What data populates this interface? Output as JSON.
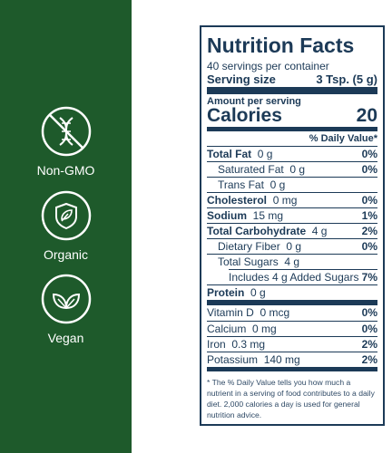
{
  "sidebar": {
    "badges": [
      "Non-GMO",
      "Organic",
      "Vegan"
    ]
  },
  "label": {
    "title": "Nutrition Facts",
    "servings": "40 servings per container",
    "serving_size_label": "Serving size",
    "serving_size": "3 Tsp. (5 g)",
    "amount_per_serving": "Amount per serving",
    "calories_label": "Calories",
    "calories": 20,
    "daily_value_header": "% Daily Value*",
    "nutrients": [
      {
        "name": "Total Fat",
        "amount": "0 g",
        "dv": "0%"
      },
      {
        "name": "Saturated Fat",
        "amount": "0 g",
        "dv": "0%"
      },
      {
        "name": "Trans Fat",
        "amount": "0 g"
      },
      {
        "name": "Cholesterol",
        "amount": "0 mg",
        "dv": "0%"
      },
      {
        "name": "Sodium",
        "amount": "15 mg",
        "dv": "1%"
      },
      {
        "name": "Total Carbohydrate",
        "amount": "4 g",
        "dv": "2%"
      },
      {
        "name": "Dietary Fiber",
        "amount": "0 g",
        "dv": "0%"
      },
      {
        "name": "Total Sugars",
        "amount": "4 g"
      },
      {
        "name": "Includes 4 g Added Sugars",
        "dv": "7%"
      },
      {
        "name": "Protein",
        "amount": "0 g"
      }
    ],
    "vitamins": [
      {
        "name": "Vitamin D",
        "amount": "0 mcg",
        "dv": "0%"
      },
      {
        "name": "Calcium",
        "amount": "0 mg",
        "dv": "0%"
      },
      {
        "name": "Iron",
        "amount": "0.3 mg",
        "dv": "2%"
      },
      {
        "name": "Potassium",
        "amount": "140 mg",
        "dv": "2%"
      }
    ],
    "footnote": "* The % Daily Value tells you how much a nutrient in a serving of food contributes to a daily diet. 2,000 calories a day is used for general nutrition advice."
  }
}
